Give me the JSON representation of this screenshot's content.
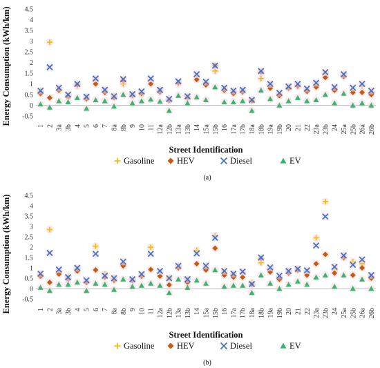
{
  "figure": {
    "ylabel": "Energy Consumption (kWh/km)",
    "xlabel": "Street Identification"
  },
  "series_styles": [
    {
      "name": "Gasoline",
      "marker": "plus",
      "color": "#F2B800"
    },
    {
      "name": "HEV",
      "marker": "diamond",
      "color": "#C55A11"
    },
    {
      "name": "Diesel",
      "marker": "x",
      "color": "#4472C4"
    },
    {
      "name": "EV",
      "marker": "triangle",
      "color": "#3CB371"
    }
  ],
  "chart_data": [
    {
      "type": "scatter",
      "panel_label": "(a)",
      "ylim": [
        -0.5,
        4.5
      ],
      "yticks": [
        "-0.5",
        "0",
        "0.5",
        "1",
        "1.5",
        "2",
        "2.5",
        "3",
        "3.5",
        "4",
        "4.5"
      ],
      "categories": [
        "1",
        "2",
        "3a",
        "3b",
        "4",
        "5",
        "6",
        "7",
        "8a",
        "8b",
        "9",
        "10",
        "11",
        "12a",
        "12b",
        "13a",
        "13b",
        "14",
        "15a",
        "15b",
        "16",
        "17a",
        "17b",
        "18a",
        "18b",
        "19a",
        "19b",
        "20",
        "21",
        "22",
        "23a",
        "23b",
        "24",
        "25a",
        "25b",
        "26a",
        "26b"
      ],
      "legend_position": "bottom",
      "series": [
        {
          "name": "Gasoline",
          "values": [
            0.65,
            2.95,
            0.75,
            0.45,
            0.9,
            0.38,
            1.2,
            0.68,
            0.42,
            1.0,
            0.5,
            0.58,
            1.15,
            0.7,
            0.25,
            1.0,
            0.4,
            1.35,
            1.05,
            1.6,
            0.72,
            0.65,
            0.7,
            0.25,
            1.25,
            0.95,
            0.5,
            0.85,
            0.9,
            0.7,
            1.0,
            1.45,
            0.78,
            1.4,
            0.7,
            0.9,
            0.58
          ]
        },
        {
          "name": "HEV",
          "values": [
            0.55,
            0.35,
            0.7,
            0.4,
            0.95,
            0.3,
            1.0,
            0.6,
            0.35,
            1.15,
            0.45,
            0.55,
            1.0,
            0.62,
            0.22,
            1.05,
            0.35,
            1.2,
            0.95,
            1.85,
            0.7,
            0.55,
            0.62,
            0.2,
            1.55,
            0.8,
            0.45,
            0.8,
            0.9,
            0.65,
            0.85,
            1.3,
            0.7,
            1.35,
            0.6,
            0.6,
            0.5
          ]
        },
        {
          "name": "Diesel",
          "values": [
            0.68,
            1.78,
            0.82,
            0.5,
            1.0,
            0.4,
            1.25,
            0.72,
            0.42,
            1.22,
            0.52,
            0.65,
            1.25,
            0.72,
            0.3,
            1.12,
            0.42,
            1.45,
            1.1,
            1.85,
            0.82,
            0.68,
            0.72,
            0.25,
            1.6,
            1.0,
            0.58,
            0.88,
            1.0,
            0.78,
            1.05,
            1.55,
            0.85,
            1.45,
            0.82,
            1.0,
            0.68
          ]
        },
        {
          "name": "EV",
          "values": [
            0.05,
            -0.1,
            0.2,
            0.15,
            0.35,
            -0.15,
            0.25,
            0.2,
            -0.05,
            0.5,
            0.1,
            0.2,
            0.28,
            0.18,
            -0.25,
            0.45,
            0.1,
            0.38,
            0.25,
            0.85,
            0.15,
            0.15,
            0.2,
            -0.25,
            0.7,
            0.3,
            0.0,
            0.2,
            0.35,
            0.2,
            0.25,
            0.5,
            0.1,
            0.55,
            0.0,
            0.1,
            0.0
          ]
        }
      ]
    },
    {
      "type": "scatter",
      "panel_label": "(b)",
      "ylim": [
        -0.5,
        4.5
      ],
      "yticks": [
        "-0.5",
        "0",
        "0.5",
        "1",
        "1.5",
        "2",
        "2.5",
        "3",
        "3.5",
        "4",
        "4.5"
      ],
      "categories": [
        "1",
        "2",
        "3a",
        "3b",
        "4",
        "5",
        "6",
        "7",
        "8a",
        "8b",
        "9",
        "10",
        "11",
        "12a",
        "12b",
        "13a",
        "13b",
        "14",
        "15a",
        "15b",
        "16",
        "17a",
        "17b",
        "18a",
        "18b",
        "19a",
        "19b",
        "20",
        "21",
        "22",
        "23a",
        "23b",
        "24",
        "25a",
        "25b",
        "26a",
        "26b"
      ],
      "legend_position": "bottom",
      "series": [
        {
          "name": "Gasoline",
          "values": [
            0.65,
            2.85,
            0.8,
            0.55,
            0.95,
            0.35,
            2.05,
            0.7,
            0.5,
            1.15,
            0.45,
            0.6,
            2.0,
            0.75,
            0.5,
            1.05,
            0.45,
            1.85,
            1.0,
            2.55,
            0.75,
            0.7,
            0.75,
            0.3,
            1.25,
            0.95,
            0.55,
            0.85,
            0.95,
            0.8,
            2.45,
            4.2,
            0.9,
            1.5,
            1.3,
            1.2,
            0.6
          ]
        },
        {
          "name": "HEV",
          "values": [
            0.6,
            0.3,
            0.7,
            0.45,
            0.85,
            0.3,
            0.9,
            0.55,
            0.4,
            1.1,
            0.38,
            0.6,
            0.92,
            0.6,
            0.18,
            1.0,
            0.3,
            1.2,
            0.9,
            1.95,
            0.65,
            0.55,
            0.55,
            0.2,
            1.45,
            0.8,
            0.45,
            0.75,
            0.88,
            0.65,
            1.2,
            1.65,
            0.75,
            1.5,
            0.65,
            1.0,
            0.5
          ]
        },
        {
          "name": "Diesel",
          "values": [
            0.72,
            1.72,
            0.92,
            0.55,
            1.0,
            0.4,
            1.68,
            0.62,
            0.5,
            1.3,
            0.45,
            0.7,
            1.68,
            0.85,
            0.5,
            1.1,
            0.45,
            1.7,
            1.1,
            2.45,
            0.85,
            0.72,
            0.82,
            0.22,
            1.5,
            1.02,
            0.62,
            0.85,
            0.95,
            0.88,
            2.08,
            3.48,
            1.05,
            1.6,
            1.15,
            1.4,
            0.65
          ]
        },
        {
          "name": "EV",
          "values": [
            0.05,
            -0.1,
            0.2,
            0.2,
            0.3,
            -0.1,
            0.25,
            0.2,
            -0.05,
            0.45,
            0.1,
            0.15,
            0.25,
            0.15,
            -0.2,
            0.45,
            0.05,
            0.4,
            0.25,
            0.9,
            0.1,
            0.15,
            0.15,
            -0.2,
            0.65,
            0.25,
            0.0,
            0.2,
            0.35,
            0.2,
            0.55,
            0.65,
            0.1,
            0.65,
            0.0,
            0.45,
            0.0
          ]
        }
      ]
    }
  ]
}
